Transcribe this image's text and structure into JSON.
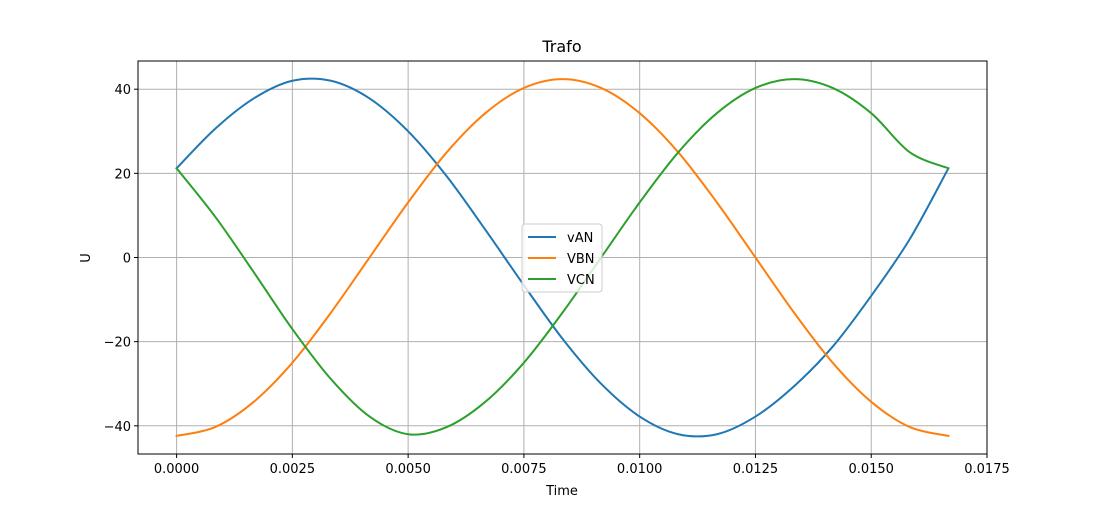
{
  "chart_data": {
    "type": "line",
    "title": "Trafo",
    "xlabel": "Time",
    "ylabel": "U",
    "xlim": [
      -0.0008333,
      0.0175
    ],
    "ylim": [
      -46.7,
      46.7
    ],
    "grid": true,
    "legend_position": "center",
    "x_ticks": [
      0.0,
      0.0025,
      0.005,
      0.0075,
      0.01,
      0.0125,
      0.015,
      0.0175
    ],
    "x_tick_labels": [
      "0.0000",
      "0.0025",
      "0.0050",
      "0.0075",
      "0.0100",
      "0.0125",
      "0.0150",
      "0.0175"
    ],
    "y_ticks": [
      -40,
      -20,
      0,
      20,
      40
    ],
    "y_tick_labels": [
      "−40",
      "−20",
      "0",
      "20",
      "40"
    ],
    "x": [
      0.0,
      0.0008333,
      0.0016667,
      0.0025,
      0.0033333,
      0.0041667,
      0.005,
      0.0058333,
      0.0066667,
      0.0075,
      0.0083333,
      0.0091667,
      0.01,
      0.0108333,
      0.0116667,
      0.0125,
      0.0133333,
      0.0141667,
      0.015,
      0.0158333,
      0.0166667
    ],
    "series": [
      {
        "name": "vAN",
        "color": "#1f77b4",
        "values": [
          21.2,
          30.6,
          37.8,
          42.0,
          42.0,
          37.8,
          30.0,
          19.3,
          6.6,
          -6.6,
          -19.3,
          -30.0,
          -37.8,
          -42.0,
          -42.0,
          -37.8,
          -30.6,
          -21.2,
          -9.1,
          4.4,
          21.2
        ]
      },
      {
        "name": "VBN",
        "color": "#ff7f0e",
        "values": [
          -42.4,
          -40.3,
          -34.3,
          -25.0,
          -13.1,
          0.0,
          13.1,
          25.0,
          34.3,
          40.3,
          42.4,
          40.3,
          34.3,
          25.0,
          13.1,
          0.0,
          -13.1,
          -25.0,
          -34.3,
          -40.3,
          -42.4
        ]
      },
      {
        "name": "VCN",
        "color": "#2ca02c",
        "values": [
          21.2,
          9.7,
          -3.5,
          -17.0,
          -28.9,
          -37.8,
          -42.0,
          -40.3,
          -34.3,
          -25.0,
          -13.1,
          0.0,
          13.1,
          25.0,
          34.3,
          40.3,
          42.4,
          40.3,
          34.3,
          25.0,
          21.2
        ]
      }
    ]
  }
}
